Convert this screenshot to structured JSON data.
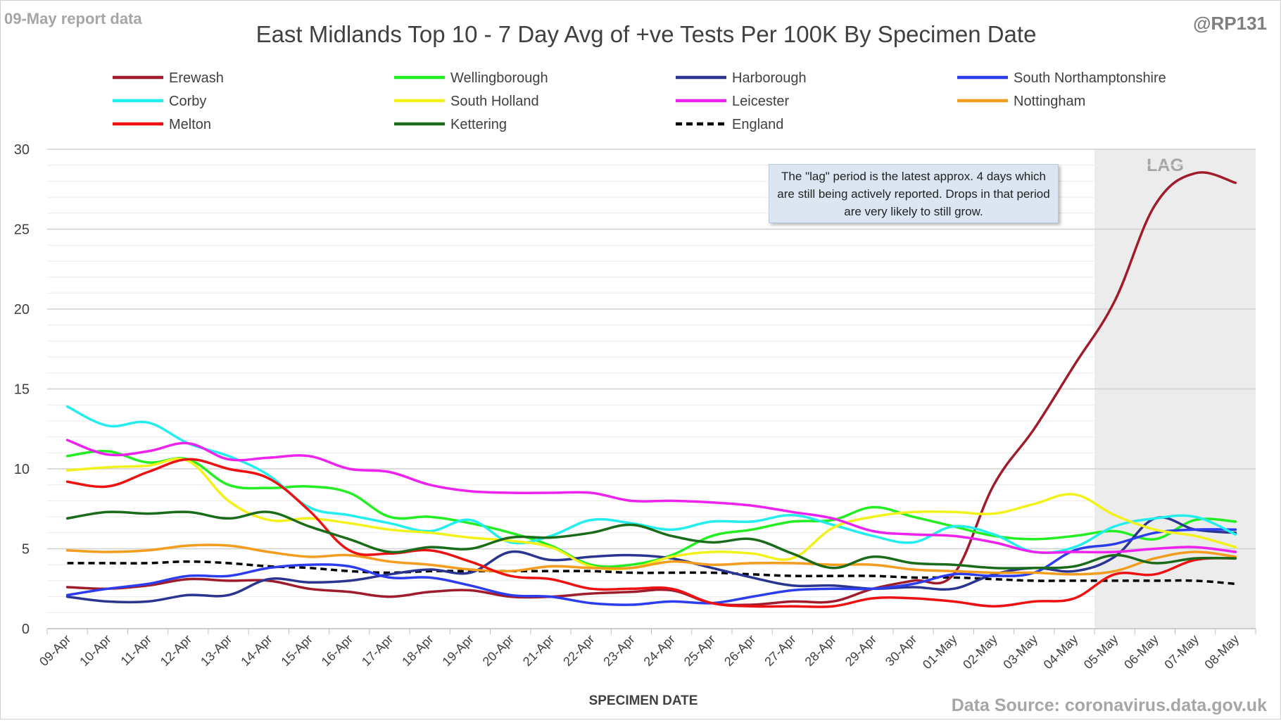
{
  "header": {
    "report_date": "09-May report data",
    "handle": "@RP131",
    "source": "Data Source: coronavirus.data.gov.uk"
  },
  "chart_data": {
    "type": "line",
    "title": "East Midlands Top 10 - 7 Day Avg of +ve Tests Per 100K By Specimen Date",
    "xlabel": "SPECIMEN DATE",
    "ylabel": "",
    "ylim": [
      0,
      30
    ],
    "yticks": [
      0,
      5,
      10,
      15,
      20,
      25,
      30
    ],
    "grid": true,
    "legend_position": "top",
    "lag_label": "LAG",
    "lag_range": [
      "05-May",
      "08-May"
    ],
    "annotation": "The \"lag\" period is the latest approx. 4 days which are still being actively reported. Drops in that period are very likely to still grow.",
    "categories": [
      "09-Apr",
      "10-Apr",
      "11-Apr",
      "12-Apr",
      "13-Apr",
      "14-Apr",
      "15-Apr",
      "16-Apr",
      "17-Apr",
      "18-Apr",
      "19-Apr",
      "20-Apr",
      "21-Apr",
      "22-Apr",
      "23-Apr",
      "24-Apr",
      "25-Apr",
      "26-Apr",
      "27-Apr",
      "28-Apr",
      "29-Apr",
      "30-Apr",
      "01-May",
      "02-May",
      "03-May",
      "04-May",
      "05-May",
      "06-May",
      "07-May",
      "08-May"
    ],
    "series": [
      {
        "name": "Erewash",
        "color": "#a01c2c",
        "dash": false,
        "values": [
          2.6,
          2.5,
          2.7,
          3.1,
          3.0,
          3.0,
          2.5,
          2.3,
          2.0,
          2.3,
          2.4,
          2.0,
          2.0,
          2.2,
          2.3,
          2.4,
          1.6,
          1.5,
          1.7,
          1.7,
          2.5,
          3.0,
          3.4,
          9.0,
          12.5,
          16.5,
          20.5,
          26.5,
          28.5,
          27.9
        ]
      },
      {
        "name": "Wellingborough",
        "color": "#22ee22",
        "dash": false,
        "values": [
          10.8,
          11.1,
          10.4,
          10.6,
          9.0,
          8.8,
          8.9,
          8.5,
          7.0,
          7.0,
          6.6,
          6.0,
          5.2,
          4.0,
          4.0,
          4.6,
          5.8,
          6.2,
          6.7,
          6.8,
          7.6,
          7.0,
          6.4,
          5.8,
          5.6,
          5.8,
          6.1,
          5.6,
          6.8,
          6.7
        ]
      },
      {
        "name": "Harborough",
        "color": "#2b3591",
        "dash": false,
        "values": [
          2.0,
          1.7,
          1.7,
          2.1,
          2.1,
          3.1,
          2.9,
          3.0,
          3.4,
          3.7,
          3.5,
          4.8,
          4.3,
          4.5,
          4.6,
          4.4,
          3.8,
          3.2,
          2.7,
          2.7,
          2.5,
          2.6,
          2.5,
          3.4,
          3.8,
          3.6,
          4.5,
          6.9,
          6.2,
          6.0
        ]
      },
      {
        "name": "South Northamptonshire",
        "color": "#2b3dee",
        "dash": false,
        "values": [
          2.1,
          2.5,
          2.8,
          3.3,
          3.3,
          3.8,
          4.0,
          3.9,
          3.2,
          3.2,
          2.7,
          2.1,
          2.0,
          1.6,
          1.5,
          1.7,
          1.6,
          2.0,
          2.4,
          2.5,
          2.5,
          2.8,
          3.4,
          3.3,
          3.5,
          4.9,
          5.3,
          6.0,
          6.2,
          6.2
        ]
      },
      {
        "name": "Corby",
        "color": "#22eeee",
        "dash": false,
        "values": [
          13.9,
          12.7,
          12.9,
          11.6,
          10.8,
          9.6,
          7.6,
          7.1,
          6.6,
          6.1,
          6.8,
          5.4,
          5.8,
          6.8,
          6.6,
          6.2,
          6.7,
          6.7,
          7.1,
          6.5,
          5.8,
          5.4,
          6.4,
          5.9,
          4.8,
          5.1,
          6.4,
          6.9,
          7.0,
          5.9
        ]
      },
      {
        "name": "South Holland",
        "color": "#f2f21a",
        "dash": false,
        "values": [
          9.9,
          10.1,
          10.2,
          10.5,
          8.0,
          6.8,
          6.9,
          6.6,
          6.2,
          6.0,
          5.7,
          5.5,
          5.1,
          3.9,
          3.8,
          4.5,
          4.8,
          4.7,
          4.4,
          6.3,
          7.0,
          7.3,
          7.3,
          7.2,
          7.8,
          8.4,
          7.1,
          6.2,
          5.8,
          5.1
        ]
      },
      {
        "name": "Leicester",
        "color": "#ee22ee",
        "dash": false,
        "values": [
          11.8,
          10.9,
          11.1,
          11.6,
          10.6,
          10.7,
          10.8,
          10.0,
          9.8,
          9.0,
          8.6,
          8.5,
          8.5,
          8.5,
          8.0,
          8.0,
          7.9,
          7.7,
          7.3,
          6.9,
          6.1,
          5.9,
          5.8,
          5.4,
          4.8,
          4.8,
          4.8,
          5.0,
          5.1,
          4.8
        ]
      },
      {
        "name": "Nottingham",
        "color": "#f39c1e",
        "dash": false,
        "values": [
          4.9,
          4.8,
          4.9,
          5.2,
          5.2,
          4.8,
          4.5,
          4.6,
          4.2,
          4.0,
          3.7,
          3.6,
          3.9,
          3.8,
          3.8,
          4.2,
          4.0,
          4.1,
          4.1,
          4.0,
          4.0,
          3.7,
          3.6,
          3.5,
          3.5,
          3.4,
          3.6,
          4.4,
          4.8,
          4.5
        ]
      },
      {
        "name": "Melton",
        "color": "#ee1111",
        "dash": false,
        "values": [
          9.2,
          8.9,
          9.8,
          10.6,
          10.0,
          9.4,
          7.4,
          4.9,
          4.7,
          4.9,
          4.2,
          3.3,
          3.1,
          2.5,
          2.5,
          2.5,
          1.6,
          1.4,
          1.4,
          1.4,
          1.9,
          1.9,
          1.7,
          1.4,
          1.7,
          1.9,
          3.4,
          3.4,
          4.3,
          4.4
        ]
      },
      {
        "name": "Kettering",
        "color": "#1a6b1a",
        "dash": false,
        "values": [
          6.9,
          7.3,
          7.2,
          7.3,
          6.9,
          7.3,
          6.4,
          5.6,
          4.8,
          5.1,
          5.0,
          5.7,
          5.7,
          6.0,
          6.5,
          5.8,
          5.4,
          5.6,
          4.7,
          3.8,
          4.5,
          4.1,
          4.0,
          3.8,
          3.8,
          3.9,
          4.6,
          4.1,
          4.4,
          4.4
        ]
      },
      {
        "name": "England",
        "color": "#000000",
        "dash": true,
        "values": [
          4.1,
          4.1,
          4.1,
          4.2,
          4.1,
          3.9,
          3.8,
          3.6,
          3.5,
          3.6,
          3.6,
          3.6,
          3.6,
          3.6,
          3.5,
          3.5,
          3.5,
          3.4,
          3.3,
          3.3,
          3.3,
          3.2,
          3.2,
          3.1,
          3.0,
          3.0,
          3.0,
          3.0,
          3.0,
          2.8
        ]
      }
    ]
  }
}
